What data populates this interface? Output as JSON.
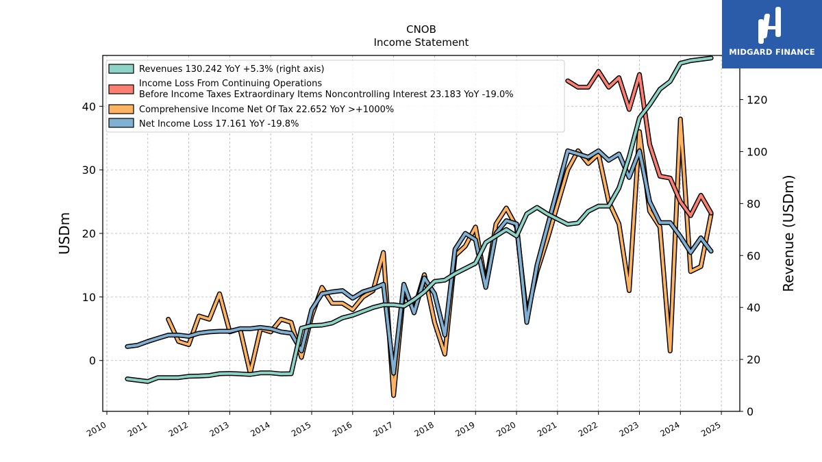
{
  "brand": {
    "name": "MIDGARD FINANCE",
    "bg_color": "#2a5caa"
  },
  "chart_data": {
    "type": "line",
    "title": "CNOB",
    "subtitle": "Income Statement",
    "ylabel": "USDm",
    "ylabel_right": "Revenue (USDm)",
    "ylim": [
      -8,
      48
    ],
    "ylim_right": [
      0,
      137
    ],
    "yticks": [
      0,
      10,
      20,
      30,
      40
    ],
    "yticks_right": [
      0,
      20,
      40,
      60,
      80,
      100,
      120
    ],
    "xlim": [
      2009.9,
      2025.45
    ],
    "xticks": [
      "2010",
      "2011",
      "2012",
      "2013",
      "2014",
      "2015",
      "2016",
      "2017",
      "2018",
      "2019",
      "2020",
      "2021",
      "2022",
      "2023",
      "2024",
      "2025"
    ],
    "grid": true,
    "legend_position": "top-left",
    "series": [
      {
        "name": "Revenues",
        "legend": "Revenues  130.242 YoY +5.3% (right axis)",
        "color": "#8dd3c7",
        "axis": "right",
        "x": [
          2010.5,
          2010.75,
          2011.0,
          2011.25,
          2011.5,
          2011.75,
          2012.0,
          2012.25,
          2012.5,
          2012.75,
          2013.0,
          2013.25,
          2013.5,
          2013.75,
          2014.0,
          2014.25,
          2014.5,
          2014.75,
          2015.0,
          2015.25,
          2015.5,
          2015.75,
          2016.0,
          2016.25,
          2016.5,
          2016.75,
          2017.0,
          2017.25,
          2017.5,
          2017.75,
          2018.0,
          2018.25,
          2018.5,
          2018.75,
          2019.0,
          2019.25,
          2019.5,
          2019.75,
          2020.0,
          2020.25,
          2020.5,
          2020.75,
          2021.0,
          2021.25,
          2021.5,
          2021.75,
          2022.0,
          2022.25,
          2022.5,
          2022.75,
          2023.0,
          2023.25,
          2023.5,
          2023.75,
          2024.0,
          2024.25,
          2024.5,
          2024.75
        ],
        "values": [
          12.5,
          12.0,
          11.5,
          13.0,
          13.0,
          13.0,
          13.5,
          13.6,
          13.8,
          14.5,
          14.6,
          14.4,
          14.2,
          14.8,
          14.8,
          14.4,
          14.5,
          32.0,
          33.0,
          33.2,
          34.0,
          36.0,
          37.0,
          38.5,
          40.0,
          41.0,
          41.0,
          40.5,
          43.0,
          46.0,
          50.0,
          50.5,
          53.0,
          55.0,
          57.0,
          65.0,
          67.5,
          70.0,
          67.5,
          76.0,
          78.5,
          76.0,
          74.0,
          72.0,
          72.5,
          77.0,
          79.0,
          79.0,
          86.0,
          98.0,
          113.0,
          118.0,
          124.0,
          127.0,
          134.0,
          135.0,
          135.5,
          136.0
        ]
      },
      {
        "name": "Income Loss From Continuing Operations Before Income Taxes Extraordinary Items Noncontrolling Interest",
        "legend_line1": "Income Loss From Continuing Operations",
        "legend_line2": "Before Income Taxes Extraordinary Items Noncontrolling Interest  23.183 YoY -19.0%",
        "color": "#fb8072",
        "axis": "left",
        "x": [
          2021.25,
          2021.5,
          2021.75,
          2022.0,
          2022.25,
          2022.5,
          2022.75,
          2023.0,
          2023.25,
          2023.5,
          2023.75,
          2024.0,
          2024.25,
          2024.5,
          2024.75
        ],
        "values": [
          44.0,
          43.0,
          43.0,
          45.5,
          43.0,
          44.5,
          39.5,
          45.0,
          34.0,
          29.0,
          28.7,
          25.0,
          22.8,
          26.0,
          23.2
        ]
      },
      {
        "name": "Comprehensive Income Net Of Tax",
        "legend": "Comprehensive Income Net Of Tax  22.652 YoY >+1000%",
        "color": "#fdb462",
        "axis": "left",
        "x": [
          2011.5,
          2011.75,
          2012.0,
          2012.25,
          2012.5,
          2012.75,
          2013.0,
          2013.25,
          2013.5,
          2013.75,
          2014.0,
          2014.25,
          2014.5,
          2014.75,
          2015.0,
          2015.25,
          2015.5,
          2015.75,
          2016.0,
          2016.25,
          2016.5,
          2016.75,
          2017.0,
          2017.25,
          2017.5,
          2017.75,
          2018.0,
          2018.25,
          2018.5,
          2018.75,
          2019.0,
          2019.25,
          2019.5,
          2019.75,
          2020.0,
          2020.25,
          2020.5,
          2020.75,
          2021.0,
          2021.25,
          2021.5,
          2021.75,
          2022.0,
          2022.25,
          2022.5,
          2022.75,
          2023.0,
          2023.25,
          2023.5,
          2023.75,
          2024.0,
          2024.25,
          2024.5,
          2024.75
        ],
        "values": [
          6.5,
          3.0,
          2.5,
          7.0,
          6.5,
          10.5,
          4.5,
          5.0,
          -2.0,
          5.0,
          4.5,
          6.5,
          6.0,
          0.5,
          7.0,
          11.5,
          9.0,
          9.0,
          8.0,
          10.0,
          11.0,
          17.0,
          -5.5,
          11.0,
          8.0,
          13.5,
          6.0,
          1.0,
          16.5,
          18.0,
          21.0,
          12.0,
          21.5,
          24.0,
          21.0,
          7.0,
          14.0,
          19.0,
          24.5,
          30.0,
          33.0,
          31.0,
          32.5,
          25.0,
          21.5,
          11.0,
          36.0,
          23.5,
          21.0,
          1.5,
          38.0,
          14.0,
          14.8,
          23.0
        ]
      },
      {
        "name": "Net Income Loss",
        "legend": "Net Income Loss  17.161 YoY -19.8%",
        "color": "#80b1d3",
        "axis": "left",
        "x": [
          2010.5,
          2010.75,
          2011.0,
          2011.25,
          2011.5,
          2011.75,
          2012.0,
          2012.25,
          2012.5,
          2012.75,
          2013.0,
          2013.25,
          2013.5,
          2013.75,
          2014.0,
          2014.25,
          2014.5,
          2014.75,
          2015.0,
          2015.25,
          2015.5,
          2015.75,
          2016.0,
          2016.25,
          2016.5,
          2016.75,
          2017.0,
          2017.25,
          2017.5,
          2017.75,
          2018.0,
          2018.25,
          2018.5,
          2018.75,
          2019.0,
          2019.25,
          2019.5,
          2019.75,
          2020.0,
          2020.25,
          2020.5,
          2020.75,
          2021.0,
          2021.25,
          2021.5,
          2021.75,
          2022.0,
          2022.25,
          2022.5,
          2022.75,
          2023.0,
          2023.25,
          2023.5,
          2023.75,
          2024.0,
          2024.25,
          2024.5,
          2024.75
        ],
        "values": [
          2.2,
          2.4,
          3.0,
          3.5,
          4.0,
          4.0,
          3.8,
          4.3,
          4.5,
          4.6,
          4.6,
          5.0,
          5.0,
          5.2,
          5.0,
          4.5,
          4.3,
          1.5,
          8.0,
          10.5,
          10.8,
          11.0,
          9.8,
          10.8,
          11.3,
          12.0,
          -2.0,
          12.0,
          7.5,
          13.0,
          10.5,
          4.0,
          17.5,
          20.0,
          19.0,
          11.5,
          20.0,
          22.0,
          21.5,
          6.0,
          15.0,
          21.0,
          27.0,
          33.0,
          32.5,
          32.0,
          33.0,
          31.5,
          32.5,
          28.8,
          33.0,
          25.0,
          21.7,
          21.7,
          19.5,
          17.0,
          19.3,
          17.2
        ]
      }
    ]
  }
}
